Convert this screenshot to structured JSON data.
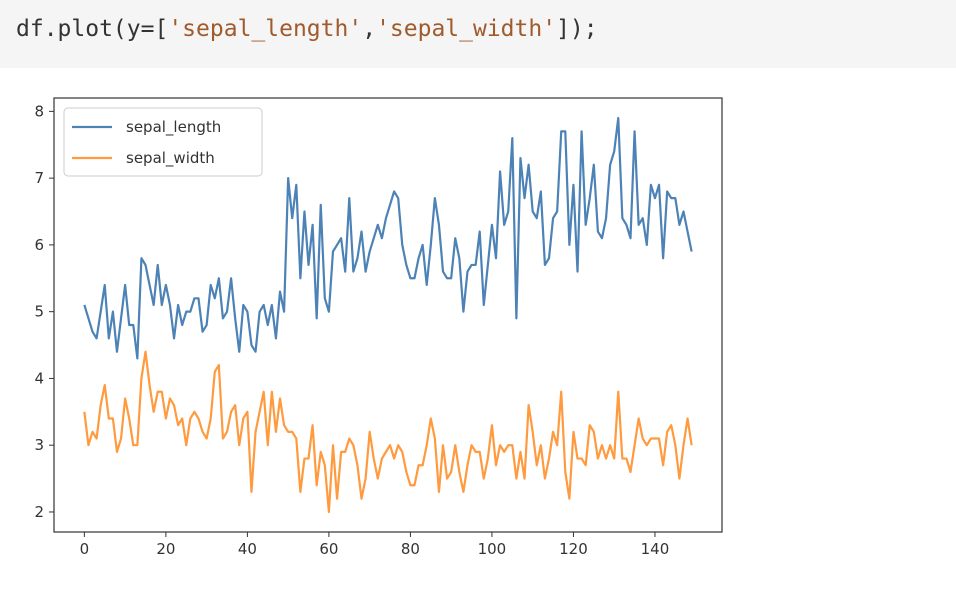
{
  "code": {
    "prefix": "df.plot(y=[",
    "arg1": "'sepal_length'",
    "sep": ",",
    "arg2": "'sepal_width'",
    "suffix": "]);"
  },
  "chart_data": {
    "type": "line",
    "title": "",
    "xlabel": "",
    "ylabel": "",
    "xlim": [
      -7.45,
      156.45
    ],
    "ylim": [
      1.7,
      8.2
    ],
    "xticks": [
      0,
      20,
      40,
      60,
      80,
      100,
      120,
      140
    ],
    "yticks": [
      2,
      3,
      4,
      5,
      6,
      7,
      8
    ],
    "grid": false,
    "legend": "upper-left",
    "series": [
      {
        "name": "sepal_length",
        "color": "#4c82b5",
        "values": [
          5.1,
          4.9,
          4.7,
          4.6,
          5.0,
          5.4,
          4.6,
          5.0,
          4.4,
          4.9,
          5.4,
          4.8,
          4.8,
          4.3,
          5.8,
          5.7,
          5.4,
          5.1,
          5.7,
          5.1,
          5.4,
          5.1,
          4.6,
          5.1,
          4.8,
          5.0,
          5.0,
          5.2,
          5.2,
          4.7,
          4.8,
          5.4,
          5.2,
          5.5,
          4.9,
          5.0,
          5.5,
          4.9,
          4.4,
          5.1,
          5.0,
          4.5,
          4.4,
          5.0,
          5.1,
          4.8,
          5.1,
          4.6,
          5.3,
          5.0,
          7.0,
          6.4,
          6.9,
          5.5,
          6.5,
          5.7,
          6.3,
          4.9,
          6.6,
          5.2,
          5.0,
          5.9,
          6.0,
          6.1,
          5.6,
          6.7,
          5.6,
          5.8,
          6.2,
          5.6,
          5.9,
          6.1,
          6.3,
          6.1,
          6.4,
          6.6,
          6.8,
          6.7,
          6.0,
          5.7,
          5.5,
          5.5,
          5.8,
          6.0,
          5.4,
          6.0,
          6.7,
          6.3,
          5.6,
          5.5,
          5.5,
          6.1,
          5.8,
          5.0,
          5.6,
          5.7,
          5.7,
          6.2,
          5.1,
          5.7,
          6.3,
          5.8,
          7.1,
          6.3,
          6.5,
          7.6,
          4.9,
          7.3,
          6.7,
          7.2,
          6.5,
          6.4,
          6.8,
          5.7,
          5.8,
          6.4,
          6.5,
          7.7,
          7.7,
          6.0,
          6.9,
          5.6,
          7.7,
          6.3,
          6.7,
          7.2,
          6.2,
          6.1,
          6.4,
          7.2,
          7.4,
          7.9,
          6.4,
          6.3,
          6.1,
          7.7,
          6.3,
          6.4,
          6.0,
          6.9,
          6.7,
          6.9,
          5.8,
          6.8,
          6.7,
          6.7,
          6.3,
          6.5,
          6.2,
          5.9
        ]
      },
      {
        "name": "sepal_width",
        "color": "#ff9a3e",
        "values": [
          3.5,
          3.0,
          3.2,
          3.1,
          3.6,
          3.9,
          3.4,
          3.4,
          2.9,
          3.1,
          3.7,
          3.4,
          3.0,
          3.0,
          4.0,
          4.4,
          3.9,
          3.5,
          3.8,
          3.8,
          3.4,
          3.7,
          3.6,
          3.3,
          3.4,
          3.0,
          3.4,
          3.5,
          3.4,
          3.2,
          3.1,
          3.4,
          4.1,
          4.2,
          3.1,
          3.2,
          3.5,
          3.6,
          3.0,
          3.4,
          3.5,
          2.3,
          3.2,
          3.5,
          3.8,
          3.0,
          3.8,
          3.2,
          3.7,
          3.3,
          3.2,
          3.2,
          3.1,
          2.3,
          2.8,
          2.8,
          3.3,
          2.4,
          2.9,
          2.7,
          2.0,
          3.0,
          2.2,
          2.9,
          2.9,
          3.1,
          3.0,
          2.7,
          2.2,
          2.5,
          3.2,
          2.8,
          2.5,
          2.8,
          2.9,
          3.0,
          2.8,
          3.0,
          2.9,
          2.6,
          2.4,
          2.4,
          2.7,
          2.7,
          3.0,
          3.4,
          3.1,
          2.3,
          3.0,
          2.5,
          2.6,
          3.0,
          2.6,
          2.3,
          2.7,
          3.0,
          2.9,
          2.9,
          2.5,
          2.8,
          3.3,
          2.7,
          3.0,
          2.9,
          3.0,
          3.0,
          2.5,
          2.9,
          2.5,
          3.6,
          3.2,
          2.7,
          3.0,
          2.5,
          2.8,
          3.2,
          3.0,
          3.8,
          2.6,
          2.2,
          3.2,
          2.8,
          2.8,
          2.7,
          3.3,
          3.2,
          2.8,
          3.0,
          2.8,
          3.0,
          2.8,
          3.8,
          2.8,
          2.8,
          2.6,
          3.0,
          3.4,
          3.1,
          3.0,
          3.1,
          3.1,
          3.1,
          2.7,
          3.2,
          3.3,
          3.0,
          2.5,
          3.0,
          3.4,
          3.0
        ]
      }
    ]
  }
}
